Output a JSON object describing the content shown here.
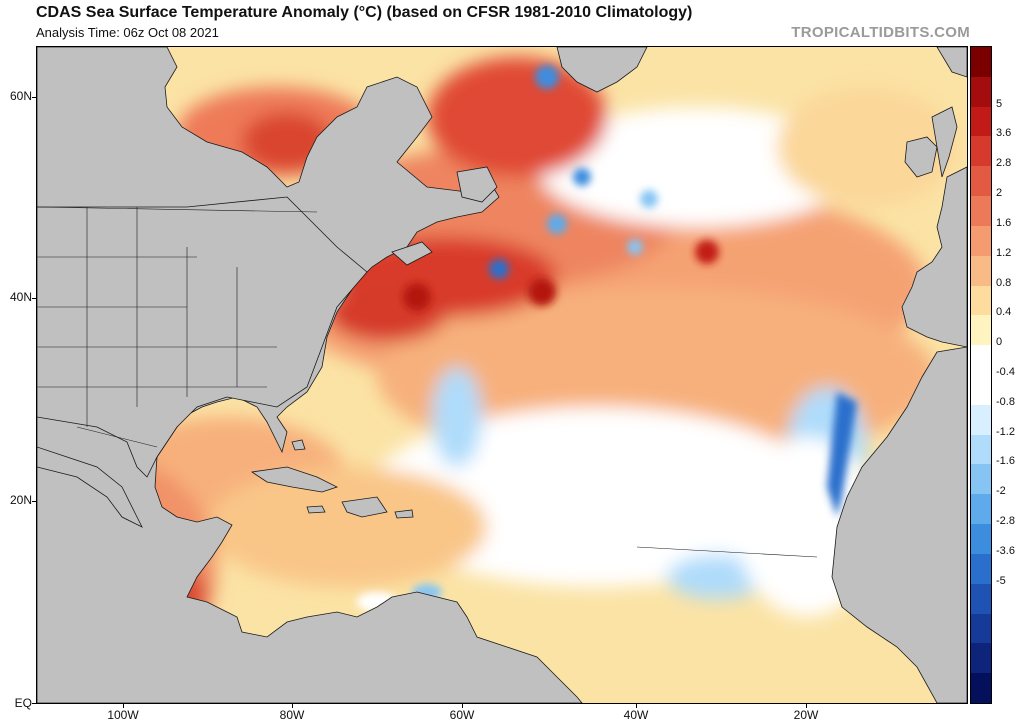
{
  "header": {
    "title": "CDAS Sea Surface Temperature Anomaly (°C) (based on CFSR 1981-2010 Climatology)",
    "subtitle": "Analysis Time: 06z Oct 08 2021",
    "credit": "TROPICALTIDBITS.COM"
  },
  "axes": {
    "lat_labels": [
      "60N",
      "40N",
      "20N",
      "EQ"
    ],
    "lon_labels": [
      "100W",
      "80W",
      "60W",
      "40W",
      "20W"
    ]
  },
  "colorbar": {
    "labels": [
      "5",
      "3.6",
      "2.8",
      "2",
      "1.6",
      "1.2",
      "0.8",
      "0.4",
      "0",
      "-0.4",
      "-0.8",
      "-1.2",
      "-1.6",
      "-2",
      "-2.8",
      "-3.6",
      "-5"
    ],
    "colors": [
      "#7a0000",
      "#a30d0d",
      "#c21a17",
      "#d63a2c",
      "#e35a43",
      "#ec7a58",
      "#f49b70",
      "#f9bb86",
      "#fddc9d",
      "#fff3bf",
      "#ffffff",
      "#ffffff",
      "#d8efff",
      "#afdcfb",
      "#86c5f3",
      "#5eaaea",
      "#3d8ddf",
      "#2a6fcc",
      "#1e52b3",
      "#163a98",
      "#0e247a",
      "#05105c"
    ]
  },
  "map": {
    "land_color": "#c0c0c0",
    "ocean_base_color": "#fbe3a5"
  }
}
